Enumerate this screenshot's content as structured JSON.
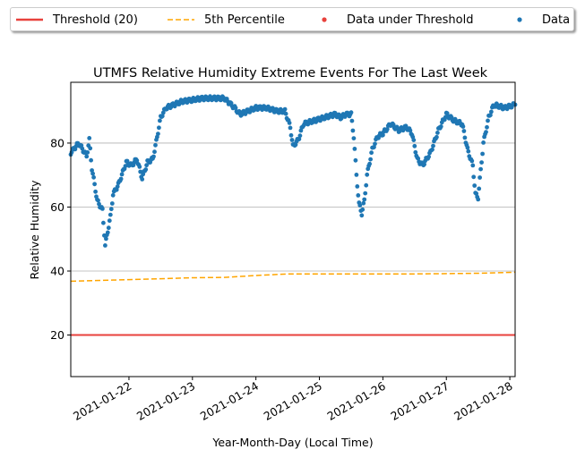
{
  "chart_data": {
    "type": "scatter",
    "title": "UTMFS Relative Humidity Extreme Events For The Last Week",
    "xlabel": "Year-Month-Day (Local Time)",
    "ylabel": "Relative Humidity",
    "xlim": [
      "2021-01-21T02:00",
      "2021-01-28T02:00"
    ],
    "ylim": [
      7,
      99
    ],
    "yticks": [
      20,
      40,
      60,
      80
    ],
    "xticks": [
      "2021-01-22",
      "2021-01-23",
      "2021-01-24",
      "2021-01-25",
      "2021-01-26",
      "2021-01-27",
      "2021-01-28"
    ],
    "grid": "y-major",
    "legend_position": "top, outside plot, 4 columns",
    "legend": [
      {
        "label": "Threshold (20)",
        "kind": "line",
        "color": "#e8413c"
      },
      {
        "label": "5th Percentile",
        "kind": "dashed-line",
        "color": "#ffa500"
      },
      {
        "label": "Data under Threshold",
        "kind": "marker",
        "color": "#e8413c"
      },
      {
        "label": "Data",
        "kind": "marker",
        "color": "#1f77b4"
      }
    ],
    "threshold": {
      "name": "Threshold (20)",
      "value": 20,
      "color": "#e8413c"
    },
    "percentile": {
      "name": "5th Percentile",
      "color": "#ffa500",
      "points": [
        [
          "2021-01-21T02:00",
          36.8
        ],
        [
          "2021-01-22T00:00",
          37.3
        ],
        [
          "2021-01-22T12:00",
          37.6
        ],
        [
          "2021-01-23T00:00",
          37.9
        ],
        [
          "2021-01-23T12:00",
          38.0
        ],
        [
          "2021-01-24T00:00",
          38.6
        ],
        [
          "2021-01-24T12:00",
          39.1
        ],
        [
          "2021-01-25T00:00",
          39.1
        ],
        [
          "2021-01-25T12:00",
          39.1
        ],
        [
          "2021-01-26T00:00",
          39.1
        ],
        [
          "2021-01-26T12:00",
          39.1
        ],
        [
          "2021-01-27T00:00",
          39.2
        ],
        [
          "2021-01-27T12:00",
          39.3
        ],
        [
          "2021-01-28T02:00",
          39.6
        ]
      ]
    },
    "series": [
      {
        "name": "Data",
        "color": "#1f77b4",
        "keypoints": [
          [
            "2021-01-21T02:00",
            77
          ],
          [
            "2021-01-21T05:00",
            80
          ],
          [
            "2021-01-21T08:00",
            76
          ],
          [
            "2021-01-21T09:00",
            81
          ],
          [
            "2021-01-21T10:00",
            72
          ],
          [
            "2021-01-21T12:00",
            62
          ],
          [
            "2021-01-21T14:00",
            59
          ],
          [
            "2021-01-21T15:00",
            48
          ],
          [
            "2021-01-21T17:00",
            57
          ],
          [
            "2021-01-21T18:00",
            64
          ],
          [
            "2021-01-21T20:00",
            67
          ],
          [
            "2021-01-21T23:00",
            74
          ],
          [
            "2021-01-22T01:00",
            73
          ],
          [
            "2021-01-22T03:00",
            75
          ],
          [
            "2021-01-22T05:00",
            69
          ],
          [
            "2021-01-22T07:00",
            74
          ],
          [
            "2021-01-22T09:00",
            75
          ],
          [
            "2021-01-22T10:00",
            79
          ],
          [
            "2021-01-22T12:00",
            88
          ],
          [
            "2021-01-22T14:00",
            91
          ],
          [
            "2021-01-22T20:00",
            93
          ],
          [
            "2021-01-23T04:00",
            94
          ],
          [
            "2021-01-23T12:00",
            94
          ],
          [
            "2021-01-23T16:00",
            91
          ],
          [
            "2021-01-23T18:00",
            89
          ],
          [
            "2021-01-23T21:00",
            90
          ],
          [
            "2021-01-24T00:00",
            91
          ],
          [
            "2021-01-24T04:00",
            91
          ],
          [
            "2021-01-24T08:00",
            90
          ],
          [
            "2021-01-24T11:00",
            90
          ],
          [
            "2021-01-24T13:00",
            85
          ],
          [
            "2021-01-24T14:00",
            79
          ],
          [
            "2021-01-24T16:00",
            81
          ],
          [
            "2021-01-24T18:00",
            86
          ],
          [
            "2021-01-24T22:00",
            87
          ],
          [
            "2021-01-25T02:00",
            88
          ],
          [
            "2021-01-25T06:00",
            89
          ],
          [
            "2021-01-25T08:00",
            88
          ],
          [
            "2021-01-25T10:00",
            89
          ],
          [
            "2021-01-25T12:00",
            89
          ],
          [
            "2021-01-25T13:00",
            82
          ],
          [
            "2021-01-25T14:00",
            70
          ],
          [
            "2021-01-25T15:00",
            61
          ],
          [
            "2021-01-25T16:00",
            58
          ],
          [
            "2021-01-25T17:00",
            62
          ],
          [
            "2021-01-25T18:00",
            70
          ],
          [
            "2021-01-25T20:00",
            78
          ],
          [
            "2021-01-25T22:00",
            82
          ],
          [
            "2021-01-26T00:00",
            83
          ],
          [
            "2021-01-26T03:00",
            86
          ],
          [
            "2021-01-26T06:00",
            84
          ],
          [
            "2021-01-26T09:00",
            85
          ],
          [
            "2021-01-26T11:00",
            83
          ],
          [
            "2021-01-26T13:00",
            75
          ],
          [
            "2021-01-26T15:00",
            73
          ],
          [
            "2021-01-26T18:00",
            77
          ],
          [
            "2021-01-26T21:00",
            84
          ],
          [
            "2021-01-27T00:00",
            89
          ],
          [
            "2021-01-27T03:00",
            87
          ],
          [
            "2021-01-27T06:00",
            86
          ],
          [
            "2021-01-27T08:00",
            78
          ],
          [
            "2021-01-27T10:00",
            73
          ],
          [
            "2021-01-27T11:00",
            64
          ],
          [
            "2021-01-27T12:00",
            63
          ],
          [
            "2021-01-27T14:00",
            80
          ],
          [
            "2021-01-27T16:00",
            88
          ],
          [
            "2021-01-27T18:00",
            92
          ],
          [
            "2021-01-27T22:00",
            91
          ],
          [
            "2021-01-28T02:00",
            92
          ]
        ]
      },
      {
        "name": "Data under Threshold",
        "color": "#e8413c",
        "keypoints": []
      }
    ]
  }
}
